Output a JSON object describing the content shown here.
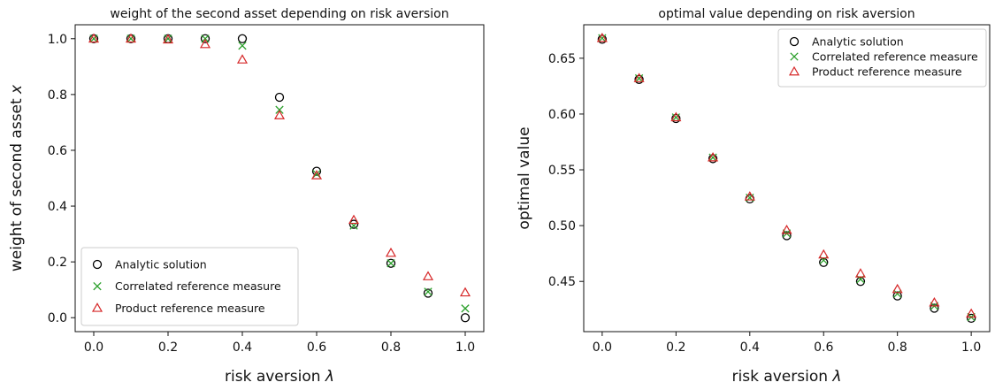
{
  "chart_data": [
    {
      "type": "scatter",
      "title": "weight of the second asset depending on risk aversion",
      "xlabel_text": "risk aversion",
      "xlabel_symbol": "λ",
      "ylabel_text": "weight of second asset",
      "ylabel_symbol": "x",
      "xlim": [
        -0.05,
        1.05
      ],
      "ylim": [
        -0.05,
        1.05
      ],
      "x_ticks": [
        0.0,
        0.2,
        0.4,
        0.6,
        0.8,
        1.0
      ],
      "x_tick_labels": [
        "0.0",
        "0.2",
        "0.4",
        "0.6",
        "0.8",
        "1.0"
      ],
      "y_ticks": [
        0.0,
        0.2,
        0.4,
        0.6,
        0.8,
        1.0
      ],
      "y_tick_labels": [
        "0.0",
        "0.2",
        "0.4",
        "0.6",
        "0.8",
        "1.0"
      ],
      "legend_position": "bottom-left",
      "grid": false,
      "x": [
        0.0,
        0.1,
        0.2,
        0.3,
        0.4,
        0.5,
        0.6,
        0.7,
        0.8,
        0.9,
        1.0
      ],
      "series": [
        {
          "name": "Analytic solution",
          "marker": "circle",
          "color": "#000000",
          "values": [
            1.0,
            1.0,
            1.0,
            1.0,
            1.0,
            0.79,
            0.525,
            0.335,
            0.195,
            0.088,
            0.0
          ]
        },
        {
          "name": "Correlated reference measure",
          "marker": "x",
          "color": "#2ca02c",
          "values": [
            1.0,
            1.0,
            1.0,
            1.0,
            0.975,
            0.745,
            0.515,
            0.33,
            0.195,
            0.093,
            0.033
          ]
        },
        {
          "name": "Product reference measure",
          "marker": "triangle",
          "color": "#d62728",
          "values": [
            1.0,
            1.0,
            0.997,
            0.98,
            0.925,
            0.725,
            0.51,
            0.35,
            0.232,
            0.148,
            0.09
          ]
        }
      ]
    },
    {
      "type": "scatter",
      "title": "optimal value depending on risk aversion",
      "xlabel_text": "risk aversion",
      "xlabel_symbol": "λ",
      "ylabel_text": "optimal value",
      "ylabel_symbol": "",
      "xlim": [
        -0.05,
        1.05
      ],
      "ylim": [
        0.405,
        0.68
      ],
      "x_ticks": [
        0.0,
        0.2,
        0.4,
        0.6,
        0.8,
        1.0
      ],
      "x_tick_labels": [
        "0.0",
        "0.2",
        "0.4",
        "0.6",
        "0.8",
        "1.0"
      ],
      "y_ticks": [
        0.45,
        0.5,
        0.55,
        0.6,
        0.65
      ],
      "y_tick_labels": [
        "0.45",
        "0.50",
        "0.55",
        "0.60",
        "0.65"
      ],
      "legend_position": "top-right",
      "grid": false,
      "x": [
        0.0,
        0.1,
        0.2,
        0.3,
        0.4,
        0.5,
        0.6,
        0.7,
        0.8,
        0.9,
        1.0
      ],
      "series": [
        {
          "name": "Analytic solution",
          "marker": "circle",
          "color": "#000000",
          "values": [
            0.667,
            0.631,
            0.596,
            0.56,
            0.524,
            0.491,
            0.467,
            0.45,
            0.437,
            0.426,
            0.417
          ]
        },
        {
          "name": "Correlated reference measure",
          "marker": "x",
          "color": "#2ca02c",
          "values": [
            0.668,
            0.632,
            0.597,
            0.561,
            0.525,
            0.493,
            0.469,
            0.452,
            0.439,
            0.428,
            0.418
          ]
        },
        {
          "name": "Product reference measure",
          "marker": "triangle",
          "color": "#d62728",
          "values": [
            0.668,
            0.632,
            0.597,
            0.561,
            0.526,
            0.496,
            0.474,
            0.457,
            0.443,
            0.431,
            0.421
          ]
        }
      ]
    }
  ]
}
